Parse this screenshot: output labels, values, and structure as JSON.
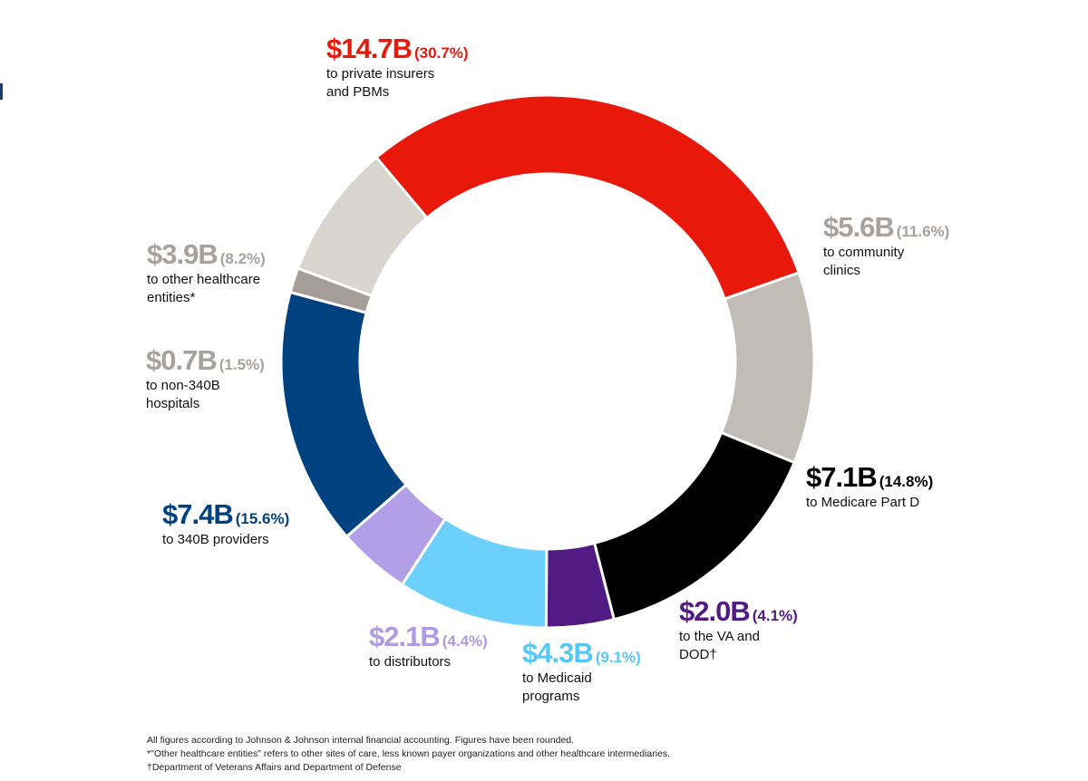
{
  "chart_data": {
    "type": "pie",
    "title": "",
    "unit": "$B",
    "slices": [
      {
        "key": "private",
        "amount": "$14.7B",
        "percent_label": "(30.7%)",
        "value": 14.7,
        "percent": 30.7,
        "line1": "to private insurers",
        "line2": "and PBMs",
        "color": "#e8180a"
      },
      {
        "key": "community",
        "amount": "$5.6B",
        "percent_label": "(11.6%)",
        "value": 5.6,
        "percent": 11.6,
        "line1": "to community",
        "line2": "clinics",
        "color": "#c1bcb5"
      },
      {
        "key": "medicare",
        "amount": "$7.1B",
        "percent_label": "(14.8%)",
        "value": 7.1,
        "percent": 14.8,
        "line1": "to Medicare Part D",
        "line2": "",
        "color": "#000000"
      },
      {
        "key": "va",
        "amount": "$2.0B",
        "percent_label": "(4.1%)",
        "value": 2.0,
        "percent": 4.1,
        "line1": "to the VA and",
        "line2": "DOD†",
        "color": "#521b83"
      },
      {
        "key": "medicaid",
        "amount": "$4.3B",
        "percent_label": "(9.1%)",
        "value": 4.3,
        "percent": 9.1,
        "line1": "to Medicaid",
        "line2": "programs",
        "color": "#6cd0fc"
      },
      {
        "key": "distributors",
        "amount": "$2.1B",
        "percent_label": "(4.4%)",
        "value": 2.1,
        "percent": 4.4,
        "line1": "to distributors",
        "line2": "",
        "color": "#b29fe8"
      },
      {
        "key": "p340b",
        "amount": "$7.4B",
        "percent_label": "(15.6%)",
        "value": 7.4,
        "percent": 15.6,
        "line1": "to 340B providers",
        "line2": "",
        "color": "#00417f"
      },
      {
        "key": "non340b",
        "amount": "$0.7B",
        "percent_label": "(1.5%)",
        "value": 0.7,
        "percent": 1.5,
        "line1": "to non-340B",
        "line2": "hospitals",
        "color": "#a59d97"
      },
      {
        "key": "other",
        "amount": "$3.9B",
        "percent_label": "(8.2%)",
        "value": 3.9,
        "percent": 8.2,
        "line1": "to other healthcare",
        "line2": "entities*",
        "color": "#d8d4ce"
      }
    ]
  },
  "label_colors": {
    "private": "#e8180a",
    "community": "#a7a29d",
    "medicare": "#000000",
    "va": "#521b83",
    "medicaid": "#58c7f5",
    "distributors": "#ad9ce4",
    "p340b": "#00417f",
    "non340b": "#a7a29d",
    "other": "#a7a29d"
  },
  "footnotes": {
    "line1": "All figures according to Johnson & Johnson internal financial accounting. Figures have been rounded.",
    "line2": "*\"Other healthcare entities\" refers to other sites of care, less known payer organizations and other healthcare intermediaries.",
    "line3": "†Department of Veterans Affairs and Department of Defense"
  }
}
